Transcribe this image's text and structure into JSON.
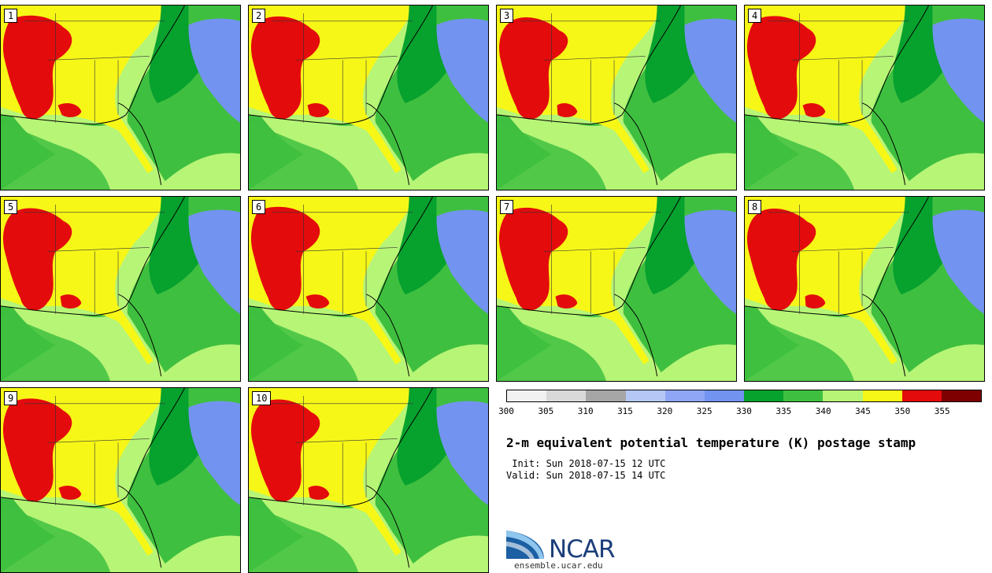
{
  "stamps": [
    {
      "label": "1"
    },
    {
      "label": "2"
    },
    {
      "label": "3"
    },
    {
      "label": "4"
    },
    {
      "label": "5"
    },
    {
      "label": "6"
    },
    {
      "label": "7"
    },
    {
      "label": "8"
    },
    {
      "label": "9"
    },
    {
      "label": "10"
    }
  ],
  "colorbar": {
    "colors": [
      "#f2f2f2",
      "#d9d9d9",
      "#a6a6a6",
      "#b5c8f5",
      "#8ea6f5",
      "#7393f0",
      "#07a12e",
      "#3fbf3f",
      "#b7f577",
      "#f7f717",
      "#e30b0b",
      "#7f0000"
    ],
    "ticks": [
      "300",
      "305",
      "310",
      "315",
      "320",
      "325",
      "330",
      "335",
      "340",
      "345",
      "350",
      "355"
    ]
  },
  "title": "2-m equivalent potential temperature (K) postage stamp",
  "init": " Init: Sun 2018-07-15 12 UTC",
  "valid": "Valid: Sun 2018-07-15 14 UTC",
  "logo": {
    "name": "NCAR",
    "url": "ensemble.ucar.edu",
    "colors": {
      "blue": "#1c3e7a",
      "light": "#3b8fd1"
    }
  }
}
